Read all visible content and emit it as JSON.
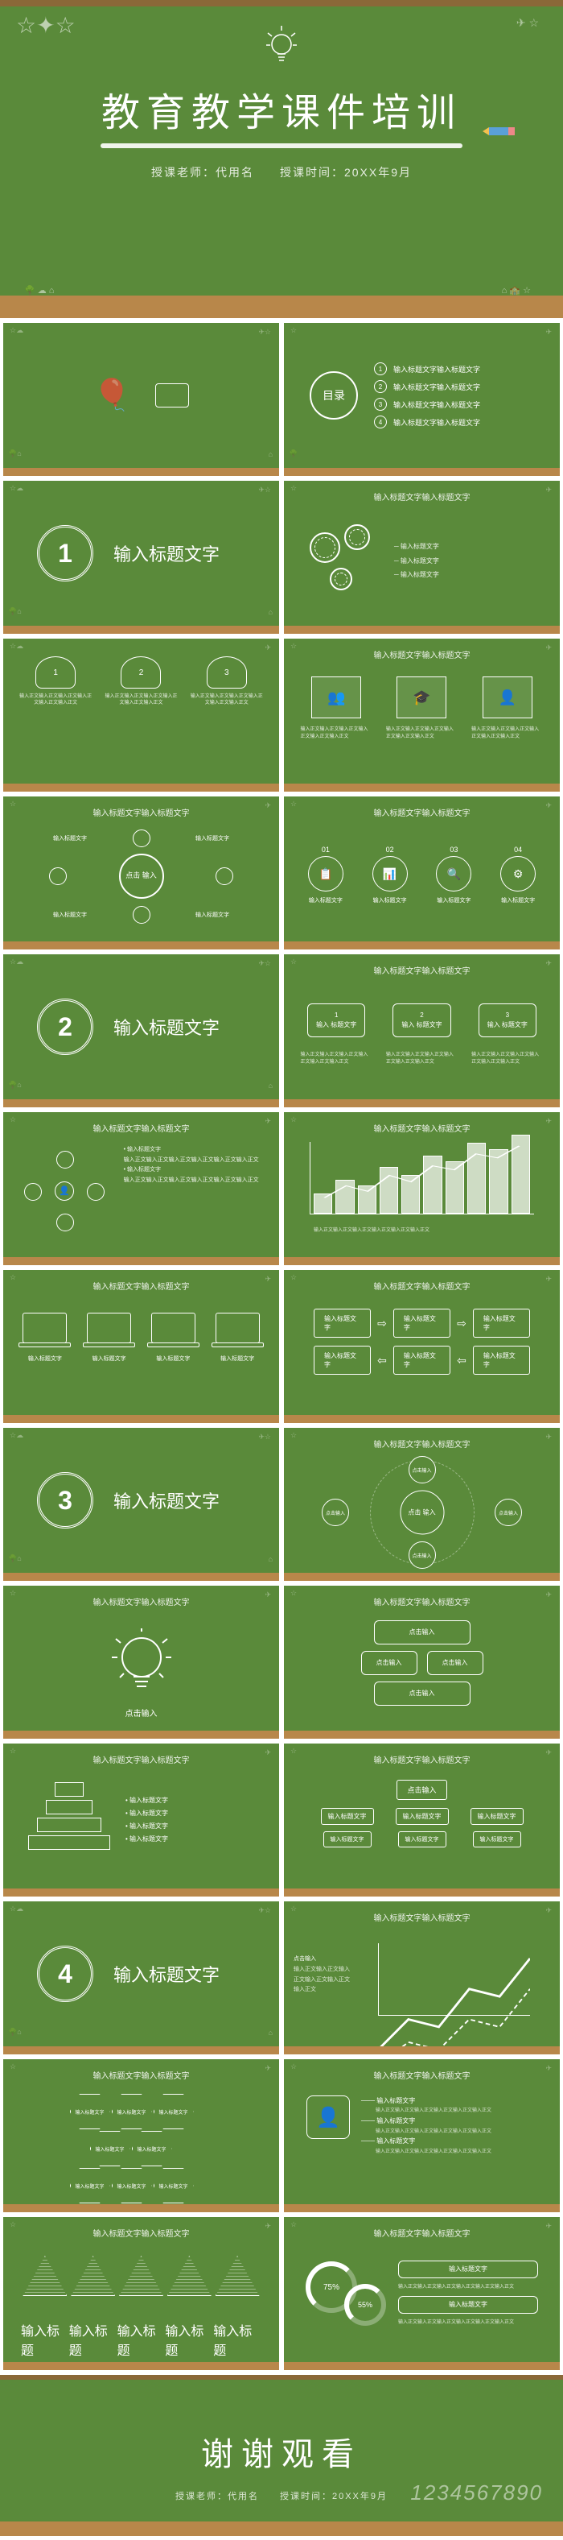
{
  "hero": {
    "title": "教育教学课件培训",
    "teacher_label": "授课老师：代用名",
    "time_label": "授课时间：20XX年9月"
  },
  "toc": {
    "label": "目录",
    "items": [
      "输入标题文字输入标题文字",
      "输入标题文字输入标题文字",
      "输入标题文字输入标题文字",
      "输入标题文字输入标题文字"
    ]
  },
  "sections": {
    "s1": {
      "num": "1",
      "title": "输入标题文字"
    },
    "s2": {
      "num": "2",
      "title": "输入标题文字"
    },
    "s3": {
      "num": "3",
      "title": "输入标题文字"
    },
    "s4": {
      "num": "4",
      "title": "输入标题文字"
    }
  },
  "common": {
    "header": "输入标题文字输入标题文字",
    "header2": "输入标题文字",
    "click_input": "点击\n输入",
    "click_input2": "点击输入",
    "lorem": "输入正文输入正文输入正文输入正文输入正文输入正文",
    "lorem_short": "输入标题文字",
    "bullet": "• 输入标题文字",
    "box_txt": "输入\n标题文字"
  },
  "circles": {
    "nums": [
      "01",
      "02",
      "03",
      "04"
    ],
    "icons": [
      "📋",
      "📊",
      "🔍",
      "⚙"
    ]
  },
  "chart_bars": [
    25,
    42,
    35,
    58,
    48,
    72,
    65,
    88,
    80,
    98
  ],
  "pyramid_widths": [
    36,
    58,
    80,
    102
  ],
  "donuts": {
    "d1": "75%",
    "d2": "55%"
  },
  "footer": {
    "title": "谢谢观看",
    "sub": "授课老师：代用名　　授课时间：20XX年9月",
    "numbers": "1234567890"
  },
  "colors": {
    "board": "#5a8a3a",
    "wood": "#b8874a",
    "chalk": "#ffffff"
  },
  "tri_labels": [
    "输入标题",
    "输入标题",
    "输入标题",
    "输入标题",
    "输入标题"
  ]
}
